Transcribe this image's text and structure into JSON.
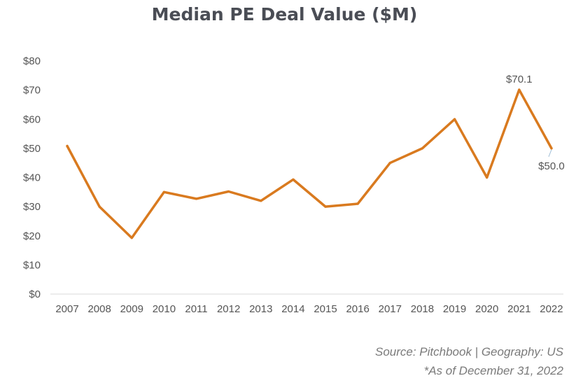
{
  "chart_data": {
    "type": "line",
    "title": "Median PE Deal Value ($M)",
    "xlabel": "",
    "ylabel": "",
    "categories": [
      "2007",
      "2008",
      "2009",
      "2010",
      "2011",
      "2012",
      "2013",
      "2014",
      "2015",
      "2016",
      "2017",
      "2018",
      "2019",
      "2020",
      "2021",
      "2022"
    ],
    "series": [
      {
        "values": [
          50.8,
          30.0,
          19.3,
          35.0,
          32.7,
          35.2,
          32.0,
          39.3,
          30.0,
          31.0,
          45.0,
          50.0,
          60.0,
          40.0,
          70.1,
          50.0
        ],
        "color": "#d97a1f"
      }
    ],
    "ylim": [
      0,
      80
    ],
    "yticks": [
      0,
      10,
      20,
      30,
      40,
      50,
      60,
      70,
      80
    ],
    "ytick_labels": [
      "$0",
      "$10",
      "$20",
      "$30",
      "$40",
      "$50",
      "$60",
      "$70",
      "$80"
    ],
    "data_labels": [
      {
        "category": "2021",
        "text": "$70.1"
      },
      {
        "category": "2022",
        "text": "$50.0"
      }
    ],
    "grid": false
  },
  "footnotes": {
    "source": "Source: Pitchbook | Geography: US",
    "as_of": "*As of December 31, 2022"
  }
}
